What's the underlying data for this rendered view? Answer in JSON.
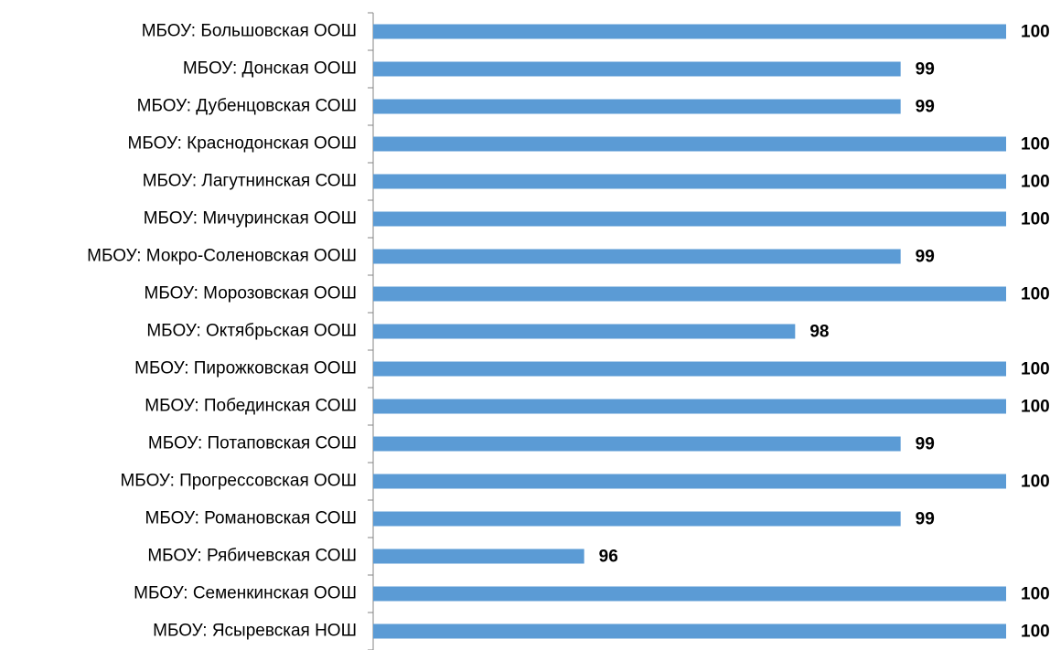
{
  "chart_data": {
    "type": "barh",
    "categories": [
      "МБОУ: Большовская ООШ",
      "МБОУ: Донская ООШ",
      "МБОУ: Дубенцовская СОШ",
      "МБОУ: Краснодонская ООШ",
      "МБОУ: Лагутнинская СОШ",
      "МБОУ: Мичуринская ООШ",
      "МБОУ: Мокро-Соленовская ООШ",
      "МБОУ: Морозовская ООШ",
      "МБОУ: Октябрьская ООШ",
      "МБОУ: Пирожковская ООШ",
      "МБОУ: Побединская СОШ",
      "МБОУ: Потаповская СОШ",
      "МБОУ: Прогрессовская ООШ",
      "МБОУ: Романовская СОШ",
      "МБОУ: Рябичевская СОШ",
      "МБОУ: Семенкинская ООШ",
      "МБОУ: Ясыревская НОШ"
    ],
    "values": [
      100,
      99,
      99,
      100,
      100,
      100,
      99,
      100,
      98,
      100,
      100,
      99,
      100,
      99,
      96,
      100,
      100
    ],
    "color": "#5b9bd5",
    "xlim": [
      94,
      100
    ],
    "data_labels": true
  }
}
